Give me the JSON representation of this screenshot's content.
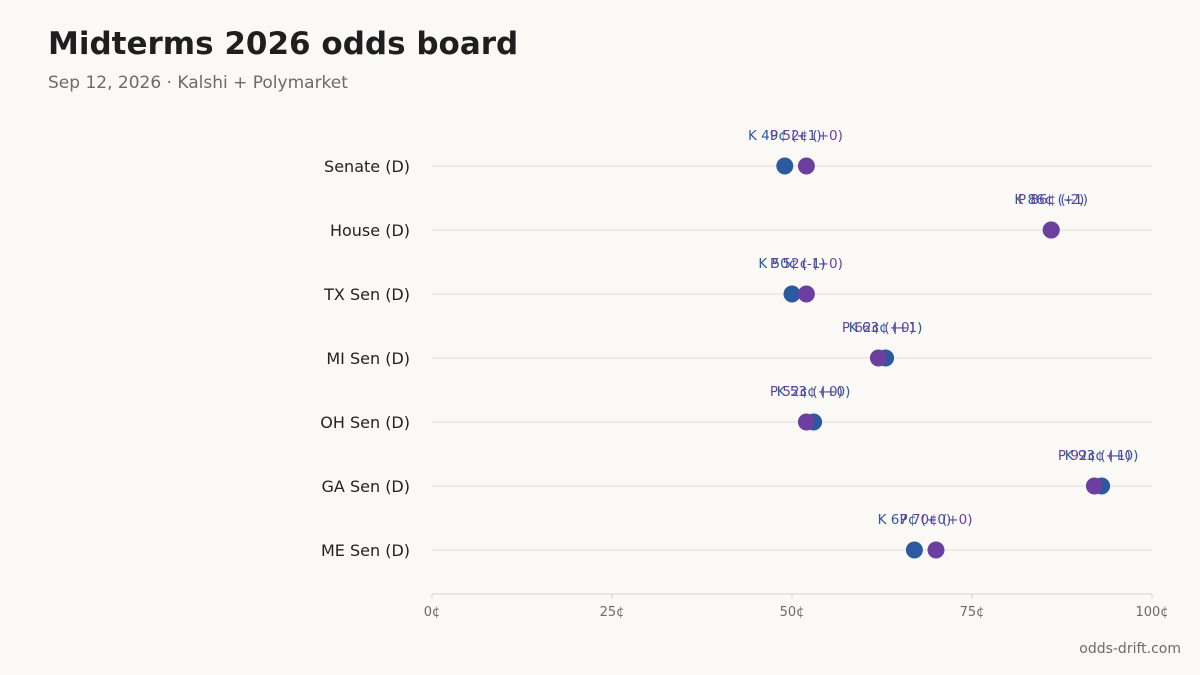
{
  "header": {
    "title": "Midterms 2026 odds board",
    "subtitle": "Sep 12, 2026 · Kalshi + Polymarket"
  },
  "footer": {
    "source": "odds-drift.com"
  },
  "colors": {
    "kalshi": "#2b5aa0",
    "polymarket": "#6b3fa0",
    "grid": "#e2e0dc",
    "axis": "#d4d2cd",
    "label": "#222222",
    "tick": "#6b6b6b"
  },
  "chart_data": {
    "type": "scatter",
    "categories": [
      "Senate (D)",
      "House (D)",
      "TX Sen (D)",
      "MI Sen (D)",
      "OH Sen (D)",
      "GA Sen (D)",
      "ME Sen (D)"
    ],
    "series": [
      {
        "key": "K",
        "values": [
          49,
          86,
          50,
          63,
          53,
          93,
          67
        ],
        "labels": [
          "K 49¢ (+1)",
          "K 86¢ (+1)",
          "K 50¢ (-1)",
          "K 63¢ (+1)",
          "K 53¢ (+0)",
          "K 93¢ (+0)",
          "K 67¢ (+0)"
        ]
      },
      {
        "key": "P",
        "values": [
          52,
          86,
          52,
          62,
          52,
          92,
          70
        ],
        "labels": [
          "P 52¢ (+0)",
          "P 86¢ (-2)",
          "P 52¢ (+0)",
          "P 62¢ (+0)",
          "P 52¢ (+0)",
          "P 92¢ (+1)",
          "P 70¢ (+0)"
        ]
      }
    ],
    "xlim": [
      0,
      100
    ],
    "xticks": [
      0,
      25,
      50,
      75,
      100
    ],
    "xtick_labels": [
      "0¢",
      "25¢",
      "50¢",
      "75¢",
      "100¢"
    ],
    "grid": true
  }
}
